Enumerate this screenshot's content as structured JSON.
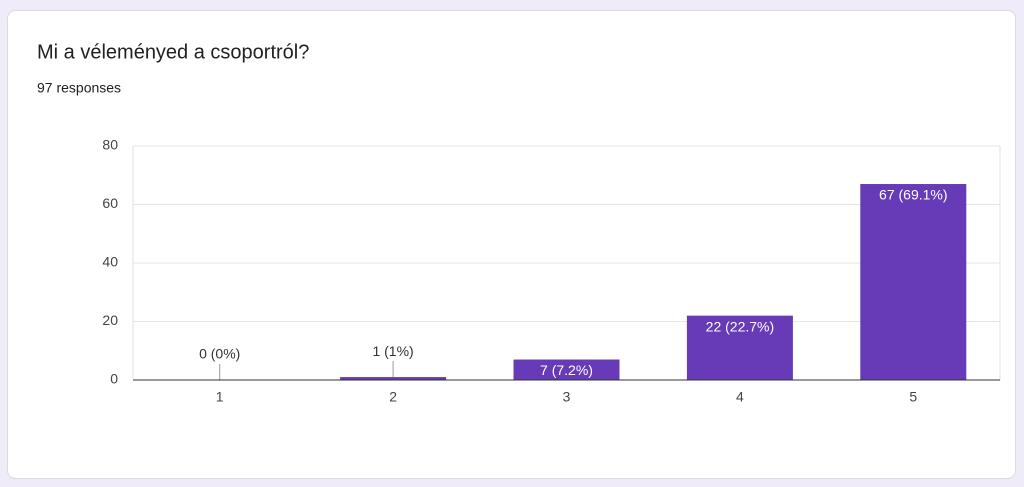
{
  "chart_data": {
    "type": "bar",
    "title": "Mi a véleményed a csoportról?",
    "subtitle": "97 responses",
    "categories": [
      "1",
      "2",
      "3",
      "4",
      "5"
    ],
    "values": [
      0,
      1,
      7,
      22,
      67
    ],
    "value_labels": [
      "0 (0%)",
      "1 (1%)",
      "7 (7.2%)",
      "22 (22.7%)",
      "67 (69.1%)"
    ],
    "color": "#673ab7",
    "ylim": [
      0,
      80
    ],
    "yticks": [
      0,
      20,
      40,
      60,
      80
    ],
    "grid": true
  }
}
